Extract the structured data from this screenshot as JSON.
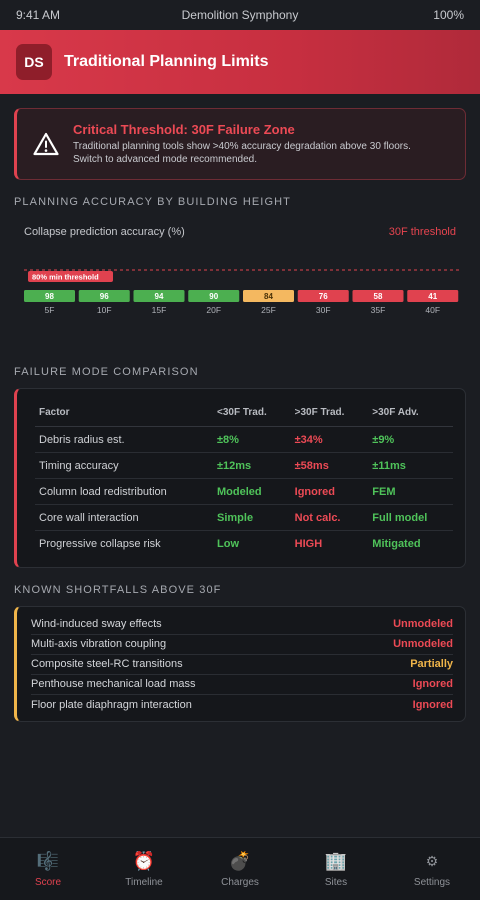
{
  "status_bar": {
    "time": "9:41 AM",
    "title": "Demolition Symphony",
    "battery": "100%"
  },
  "header": {
    "logo": "DS",
    "title": "Traditional Planning Limits"
  },
  "alert": {
    "icon": "warning-icon",
    "title": "Critical Threshold: 30F Failure Zone",
    "line1": "Traditional planning tools show >40% accuracy degradation above 30 floors.",
    "line2": "Switch to advanced mode recommended."
  },
  "accuracy_section": {
    "title": "PLANNING ACCURACY BY BUILDING HEIGHT"
  },
  "chart_data": {
    "type": "bar",
    "title": "Collapse prediction accuracy (%)",
    "annotation": "30F threshold",
    "reference_line": {
      "value": 80,
      "label": "80% min threshold"
    },
    "categories": [
      "5F",
      "10F",
      "15F",
      "20F",
      "25F",
      "30F",
      "35F",
      "40F"
    ],
    "values": [
      98,
      96,
      94,
      90,
      84,
      76,
      58,
      41
    ],
    "bar_colors": [
      "#4caf50",
      "#4caf50",
      "#4caf50",
      "#4caf50",
      "#f4b860",
      "#e0424f",
      "#e0424f",
      "#e0424f"
    ]
  },
  "comparison": {
    "title": "FAILURE MODE COMPARISON",
    "headers": [
      "Factor",
      "<30F Trad.",
      ">30F Trad.",
      ">30F Adv."
    ],
    "rows": [
      [
        "Debris radius est.",
        "±8%",
        "±34%",
        "±9%"
      ],
      [
        "Timing accuracy",
        "±12ms",
        "±58ms",
        "±11ms"
      ],
      [
        "Column load redistribution",
        "Modeled",
        "Ignored",
        "FEM"
      ],
      [
        "Core wall interaction",
        "Simple",
        "Not calc.",
        "Full model"
      ],
      [
        "Progressive collapse risk",
        "Low",
        "HIGH",
        "Mitigated"
      ]
    ]
  },
  "shortfalls": {
    "title": "KNOWN SHORTFALLS ABOVE 30F",
    "items": [
      {
        "label": "Wind-induced sway effects",
        "status": "Unmodeled",
        "color": "#ec4a55"
      },
      {
        "label": "Multi-axis vibration coupling",
        "status": "Unmodeled",
        "color": "#ec4a55"
      },
      {
        "label": "Composite steel-RC transitions",
        "status": "Partially",
        "color": "#f0b54a"
      },
      {
        "label": "Penthouse mechanical load mass",
        "status": "Ignored",
        "color": "#ec4a55"
      },
      {
        "label": "Floor plate diaphragm interaction",
        "status": "Ignored",
        "color": "#ec4a55"
      }
    ]
  },
  "tabs": [
    {
      "icon": "🎼",
      "label": "Score",
      "active": true
    },
    {
      "icon": "⏰",
      "label": "Timeline",
      "active": false
    },
    {
      "icon": "💣",
      "label": "Charges",
      "active": false
    },
    {
      "icon": "🏢",
      "label": "Sites",
      "active": false
    },
    {
      "icon": "⚙",
      "label": "Settings",
      "active": false
    }
  ]
}
